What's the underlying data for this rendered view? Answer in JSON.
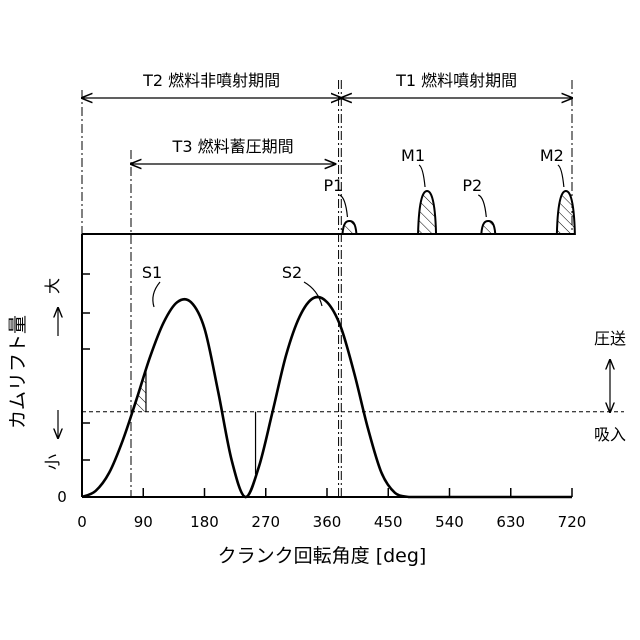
{
  "chart_data": {
    "type": "line",
    "xlabel": "クランク回転角度 [deg]",
    "ylabel": "カムリフト量",
    "y_zero_label": "0",
    "y_small_label": "小",
    "y_large_label": "大",
    "x_ticks": [
      0,
      90,
      180,
      270,
      360,
      450,
      540,
      630,
      720
    ],
    "xlim": [
      0,
      720
    ],
    "ylim": [
      0,
      1
    ],
    "reference_level": 0.42,
    "right_labels": {
      "up": "圧送",
      "down": "吸入"
    },
    "cam_lift_series": {
      "x": [
        0,
        20,
        40,
        60,
        80,
        100,
        120,
        140,
        160,
        180,
        200,
        220,
        240,
        260,
        280,
        300,
        320,
        340,
        360,
        380,
        400,
        420,
        440,
        460,
        480
      ],
      "y": [
        0,
        0.03,
        0.12,
        0.28,
        0.48,
        0.69,
        0.86,
        0.96,
        0.96,
        0.83,
        0.52,
        0.18,
        0,
        0.15,
        0.42,
        0.7,
        0.89,
        0.98,
        0.96,
        0.84,
        0.61,
        0.34,
        0.12,
        0.02,
        0
      ]
    },
    "hatched_regions": [
      {
        "label": "S1",
        "x_start": 47,
        "x_end": 94
      },
      {
        "label": "S2",
        "x_start": 213,
        "x_end": 255
      }
    ],
    "periods": [
      {
        "label": "T2 燃料非噴射期間",
        "x_start": 0,
        "x_end": 381
      },
      {
        "label": "T1 燃料噴射期間",
        "x_start": 381,
        "x_end": 720
      },
      {
        "label": "T3 燃料蓄圧期間",
        "x_start": 72,
        "x_end": 372
      }
    ],
    "injection_pulses": [
      {
        "label": "P1",
        "x": 393,
        "height": 0.13
      },
      {
        "label": "M1",
        "x": 507,
        "height": 0.43
      },
      {
        "label": "P2",
        "x": 597,
        "height": 0.13
      },
      {
        "label": "M2",
        "x": 711,
        "height": 0.43
      }
    ]
  }
}
